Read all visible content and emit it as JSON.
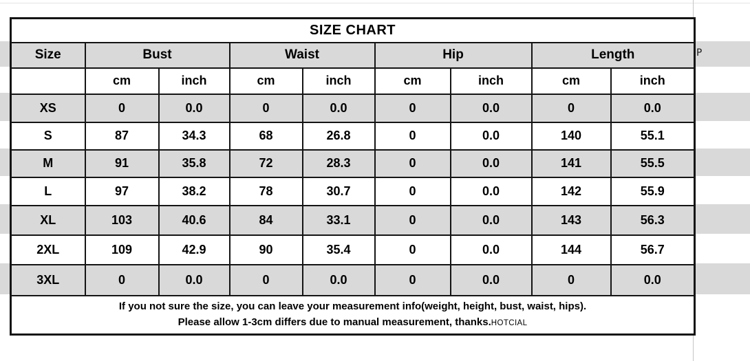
{
  "title": "SIZE CHART",
  "corner_label": "P",
  "size_table": {
    "size_header": "Size",
    "groups": [
      "Bust",
      "Waist",
      "Hip",
      "Length"
    ],
    "units": [
      "cm",
      "inch"
    ],
    "rows": [
      {
        "size": "XS",
        "values": [
          "0",
          "0.0",
          "0",
          "0.0",
          "0",
          "0.0",
          "0",
          "0.0"
        ]
      },
      {
        "size": "S",
        "values": [
          "87",
          "34.3",
          "68",
          "26.8",
          "0",
          "0.0",
          "140",
          "55.1"
        ]
      },
      {
        "size": "M",
        "values": [
          "91",
          "35.8",
          "72",
          "28.3",
          "0",
          "0.0",
          "141",
          "55.5"
        ]
      },
      {
        "size": "L",
        "values": [
          "97",
          "38.2",
          "78",
          "30.7",
          "0",
          "0.0",
          "142",
          "55.9"
        ]
      },
      {
        "size": "XL",
        "values": [
          "103",
          "40.6",
          "84",
          "33.1",
          "0",
          "0.0",
          "143",
          "56.3"
        ]
      },
      {
        "size": "2XL",
        "values": [
          "109",
          "42.9",
          "90",
          "35.4",
          "0",
          "0.0",
          "144",
          "56.7"
        ]
      },
      {
        "size": "3XL",
        "values": [
          "0",
          "0.0",
          "0",
          "0.0",
          "0",
          "0.0",
          "0",
          "0.0"
        ]
      }
    ]
  },
  "footer": {
    "line1": "If you not sure the size, you can leave your measurement info(weight, height, bust, waist, hips).",
    "line2": "Please allow 1-3cm differs due to manual measurement, thanks.",
    "brand": "HOTCIAL"
  },
  "colors": {
    "row_band": "#d9d9d9",
    "border": "#141414",
    "text": "#000000",
    "background": "#ffffff"
  }
}
